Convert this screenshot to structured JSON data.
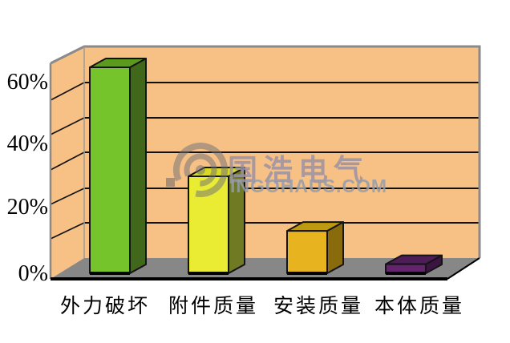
{
  "chart_data": {
    "type": "bar",
    "projection": "3d-column",
    "title": "",
    "categories": [
      "外力破坏",
      "附件质量",
      "安装质量",
      "本体质量"
    ],
    "values": [
      68,
      32,
      14,
      3
    ],
    "unit": "%",
    "y_ticks": [
      "60%",
      "40%",
      "20%",
      "0%"
    ],
    "ylim": [
      0,
      70
    ],
    "gridlines": "horizontal every 10%",
    "legend": "none",
    "wall_color": "#F7C085",
    "floor_color": "#878787",
    "frame_color": "#8a8a8a",
    "colors": [
      {
        "front": "#76C42C",
        "top": "#5B9A1F",
        "side": "#41671B"
      },
      {
        "front": "#EAEB33",
        "top": "#D8D825",
        "side": "#6F7A23"
      },
      {
        "front": "#E7B41F",
        "top": "#BE9A10",
        "side": "#8A6B0C"
      },
      {
        "front": "#63246D",
        "top": "#4E1C57",
        "side": "#3B1441"
      }
    ]
  },
  "watermark": {
    "brand": "国浩电气",
    "domain": "INGOHAUS.COM",
    "logo": "concentric-rings-icon",
    "color": "#8d8f98"
  }
}
